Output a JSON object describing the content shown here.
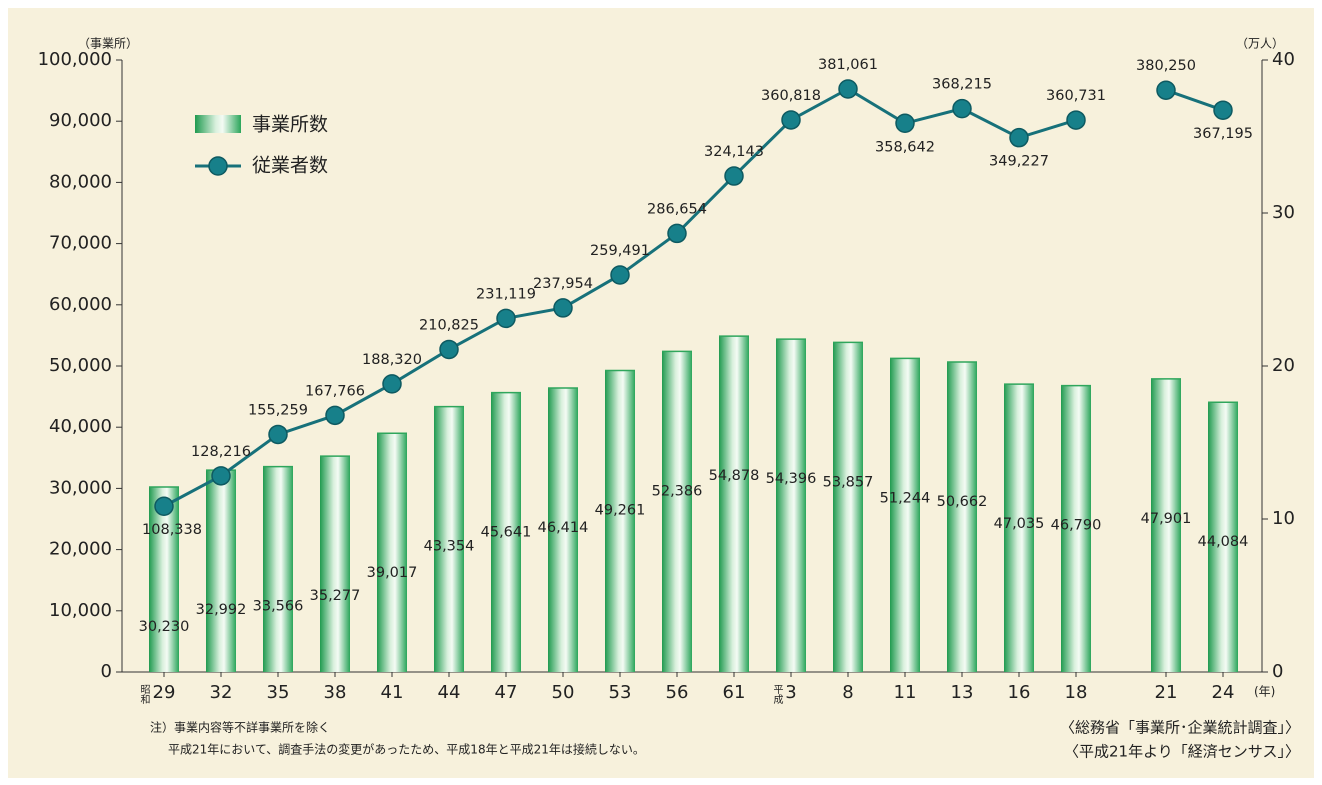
{
  "chart_data": {
    "type": "bar_line",
    "categories": [
      "29",
      "32",
      "35",
      "38",
      "41",
      "44",
      "47",
      "50",
      "53",
      "56",
      "61",
      "3",
      "8",
      "11",
      "13",
      "16",
      "18",
      null,
      "21",
      "24"
    ],
    "series": [
      {
        "name": "事業所数",
        "type": "bar",
        "color": "#2fa65c",
        "axis": "y",
        "values": [
          30230,
          32992,
          33566,
          35277,
          39017,
          43354,
          45641,
          46414,
          49261,
          52386,
          54878,
          54396,
          53857,
          51244,
          50662,
          47035,
          46790,
          null,
          47901,
          44084
        ],
        "value_labels": [
          "30,230",
          "32,992",
          "33,566",
          "35,277",
          "39,017",
          "43,354",
          "45,641",
          "46,414",
          "49,261",
          "52,386",
          "54,878",
          "54,396",
          "53,857",
          "51,244",
          "50,662",
          "47,035",
          "46,790",
          null,
          "47,901",
          "44,084"
        ]
      },
      {
        "name": "従業者数",
        "type": "line",
        "color": "#17717a",
        "axis": "y2",
        "values": [
          10.8338,
          12.8216,
          15.5259,
          16.7766,
          18.832,
          21.0825,
          23.1119,
          23.7954,
          25.9491,
          28.6654,
          32.4143,
          36.0818,
          38.1061,
          35.8642,
          36.8215,
          34.9227,
          36.0731,
          null,
          38.025,
          36.7195
        ],
        "value_labels": [
          "108,338",
          "128,216",
          "155,259",
          "167,766",
          "188,320",
          "210,825",
          "231,119",
          "237,954",
          "259,491",
          "286,654",
          "324,143",
          "360,818",
          "381,061",
          "358,642",
          "368,215",
          "349,227",
          "360,731",
          null,
          "380,250",
          "367,195"
        ]
      }
    ],
    "ylim": [
      0,
      100000
    ],
    "yticks": [
      0,
      {
        "value": 10000,
        "label": "10,000"
      },
      {
        "value": 20000,
        "label": "20,000"
      },
      {
        "value": 30000,
        "label": "30,000"
      },
      {
        "value": 40000,
        "label": "40,000"
      },
      {
        "value": 50000,
        "label": "50,000"
      },
      {
        "value": 60000,
        "label": "60,000"
      },
      {
        "value": 70000,
        "label": "70,000"
      },
      {
        "value": 80000,
        "label": "80,000"
      },
      {
        "value": 90000,
        "label": "90,000"
      },
      {
        "value": 100000,
        "label": "100,000"
      }
    ],
    "y2lim": [
      0,
      40
    ],
    "y2ticks": [
      0,
      10,
      20,
      30,
      40
    ],
    "y_label": "（事業所）",
    "y2_label": "（万人）",
    "x_unit": "(年)",
    "era_labels": {
      "showa": "昭和",
      "heisei": "平成"
    },
    "notes": [
      "注）事業内容等不詳事業所を除く",
      "平成21年において、調査手法の変更があったため、平成18年と平成21年は接続しない。"
    ],
    "sources": [
      "〈総務省「事業所･企業統計調査」〉",
      "〈平成21年より「経済センサス」〉"
    ],
    "legend_position": "upper left"
  }
}
